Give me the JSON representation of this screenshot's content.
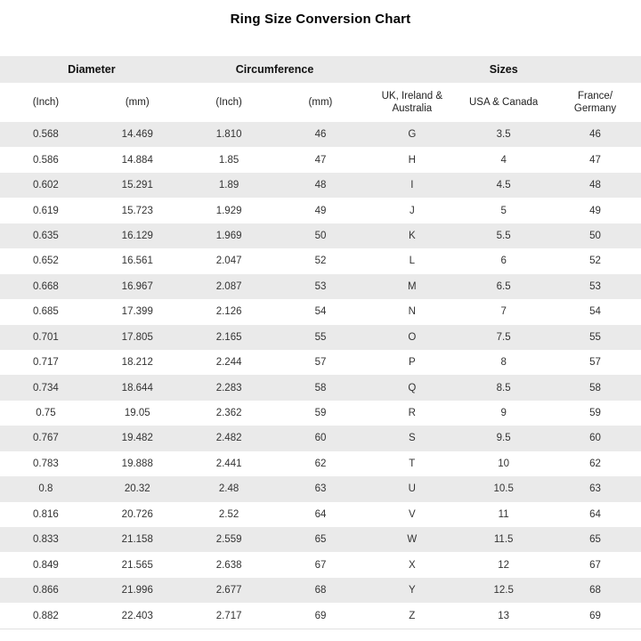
{
  "title": "Ring Size Conversion Chart",
  "chart_data": {
    "type": "table",
    "title": "Ring Size Conversion Chart",
    "group_headers": [
      {
        "label": "Diameter",
        "colspan": 2
      },
      {
        "label": "Circumference",
        "colspan": 2
      },
      {
        "label": "Sizes",
        "colspan": 3
      }
    ],
    "columns": [
      "(Inch)",
      "(mm)",
      "(Inch)",
      "(mm)",
      "UK, Ireland & Australia",
      "USA & Canada",
      "France/ Germany"
    ],
    "rows": [
      [
        "0.568",
        "14.469",
        "1.810",
        "46",
        "G",
        "3.5",
        "46"
      ],
      [
        "0.586",
        "14.884",
        "1.85",
        "47",
        "H",
        "4",
        "47"
      ],
      [
        "0.602",
        "15.291",
        "1.89",
        "48",
        "I",
        "4.5",
        "48"
      ],
      [
        "0.619",
        "15.723",
        "1.929",
        "49",
        "J",
        "5",
        "49"
      ],
      [
        "0.635",
        "16.129",
        "1.969",
        "50",
        "K",
        "5.5",
        "50"
      ],
      [
        "0.652",
        "16.561",
        "2.047",
        "52",
        "L",
        "6",
        "52"
      ],
      [
        "0.668",
        "16.967",
        "2.087",
        "53",
        "M",
        "6.5",
        "53"
      ],
      [
        "0.685",
        "17.399",
        "2.126",
        "54",
        "N",
        "7",
        "54"
      ],
      [
        "0.701",
        "17.805",
        "2.165",
        "55",
        "O",
        "7.5",
        "55"
      ],
      [
        "0.717",
        "18.212",
        "2.244",
        "57",
        "P",
        "8",
        "57"
      ],
      [
        "0.734",
        "18.644",
        "2.283",
        "58",
        "Q",
        "8.5",
        "58"
      ],
      [
        "0.75",
        "19.05",
        "2.362",
        "59",
        "R",
        "9",
        "59"
      ],
      [
        "0.767",
        "19.482",
        "2.482",
        "60",
        "S",
        "9.5",
        "60"
      ],
      [
        "0.783",
        "19.888",
        "2.441",
        "62",
        "T",
        "10",
        "62"
      ],
      [
        "0.8",
        "20.32",
        "2.48",
        "63",
        "U",
        "10.5",
        "63"
      ],
      [
        "0.816",
        "20.726",
        "2.52",
        "64",
        "V",
        "11",
        "64"
      ],
      [
        "0.833",
        "21.158",
        "2.559",
        "65",
        "W",
        "11.5",
        "65"
      ],
      [
        "0.849",
        "21.565",
        "2.638",
        "67",
        "X",
        "12",
        "67"
      ],
      [
        "0.866",
        "21.996",
        "2.677",
        "68",
        "Y",
        "12.5",
        "68"
      ],
      [
        "0.882",
        "22.403",
        "2.717",
        "69",
        "Z",
        "13",
        "69"
      ]
    ]
  },
  "colors": {
    "header_bg": "#eaeaea",
    "stripe_bg": "#eaeaea",
    "row_bg": "#ffffff",
    "text": "#333333",
    "title_text": "#000000",
    "table_bottom_border": "#e0e0e0"
  }
}
